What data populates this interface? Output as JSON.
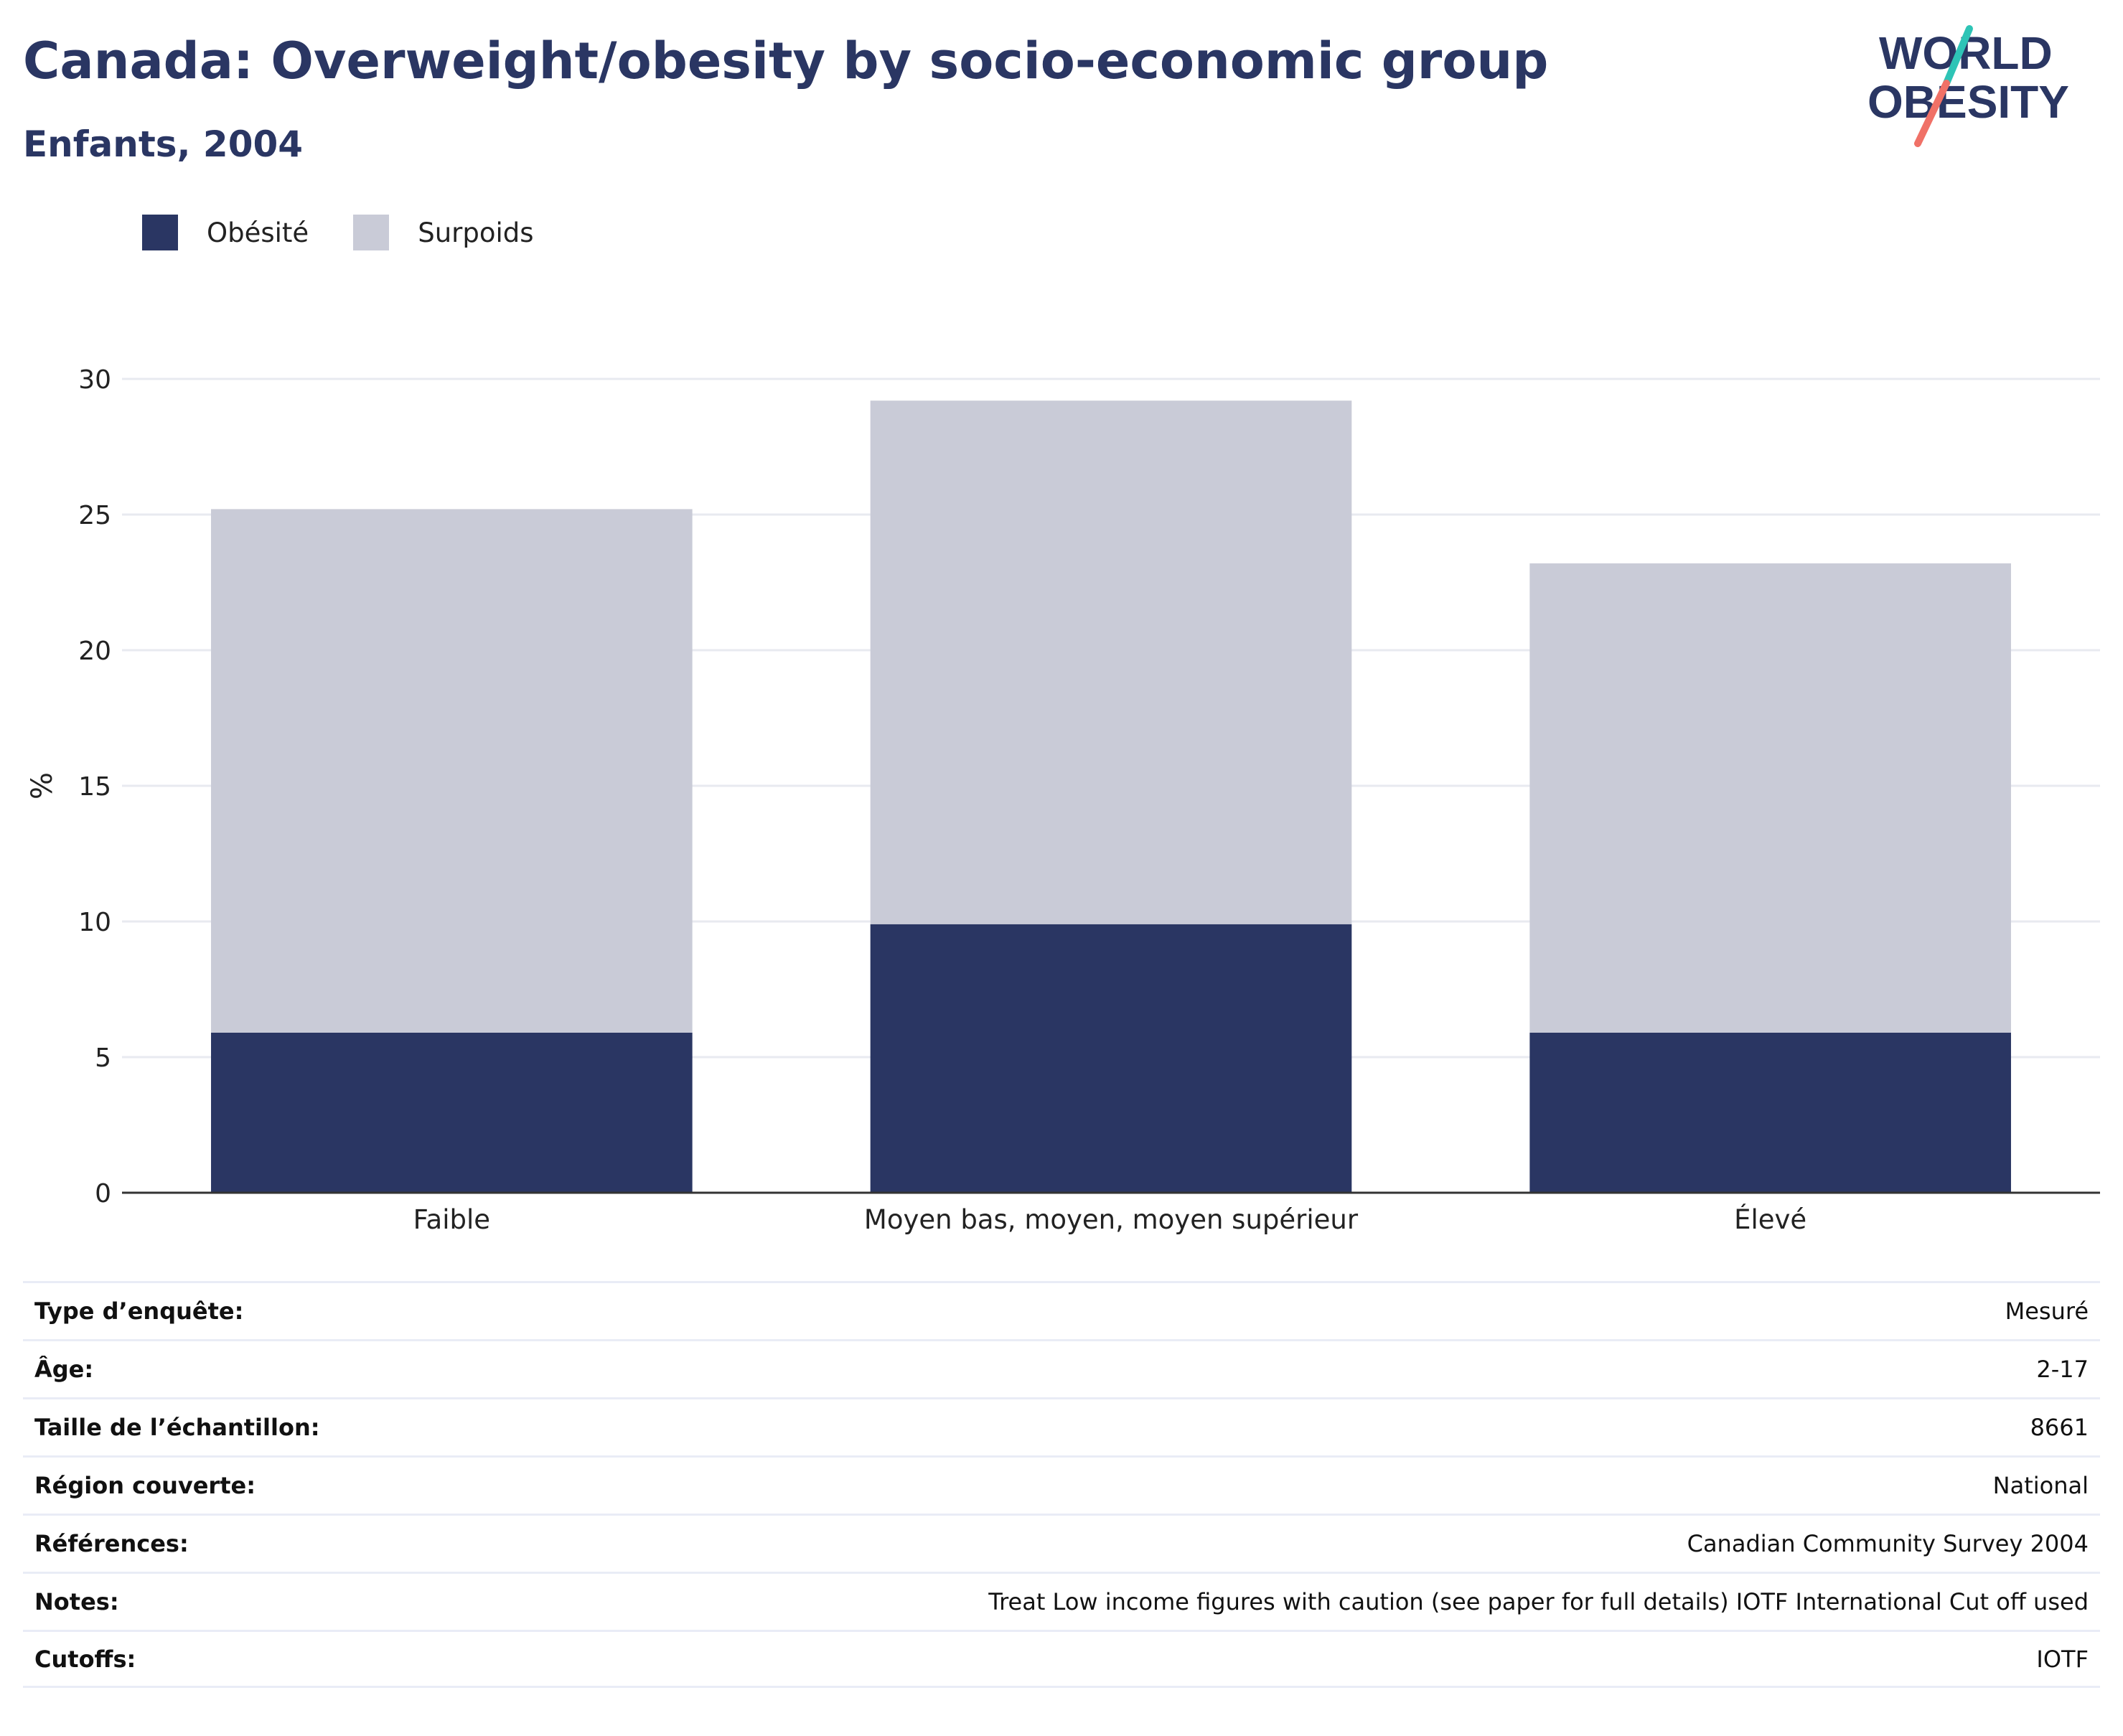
{
  "header": {
    "title": "Canada: Overweight/obesity by socio-economic group",
    "subtitle": "Enfants, 2004"
  },
  "logo": {
    "line1": "WORLD",
    "line2": "OBESITY",
    "slash_colors": [
      "#2ec4b6",
      "#f07167"
    ]
  },
  "legend": {
    "items": [
      {
        "label": "Obésité",
        "color": "#2a3663"
      },
      {
        "label": "Surpoids",
        "color": "#c9cbd7"
      }
    ]
  },
  "chart_data": {
    "type": "bar",
    "stacked": true,
    "categories": [
      "Faible",
      "Moyen bas, moyen, moyen supérieur",
      "Élevé"
    ],
    "series": [
      {
        "name": "Obésité",
        "values": [
          5.9,
          9.9,
          5.9
        ],
        "color": "#2a3663"
      },
      {
        "name": "Surpoids",
        "values": [
          19.3,
          19.3,
          17.3
        ],
        "color": "#c9cbd7"
      }
    ],
    "ylabel": "%",
    "ylim": [
      0,
      30
    ],
    "yticks": [
      0,
      5,
      10,
      15,
      20,
      25,
      30
    ],
    "grid": true,
    "legend_position": "top-left"
  },
  "meta": {
    "rows": [
      {
        "label": "Type d’enquête:",
        "value": "Mesuré"
      },
      {
        "label": "Âge:",
        "value": "2-17"
      },
      {
        "label": "Taille de l’échantillon:",
        "value": "8661"
      },
      {
        "label": "Région couverte:",
        "value": "National"
      },
      {
        "label": "Références:",
        "value": "Canadian Community Survey 2004"
      },
      {
        "label": "Notes:",
        "value": "Treat Low income figures with caution (see paper for full details) IOTF International Cut off used"
      },
      {
        "label": "Cutoffs:",
        "value": "IOTF"
      }
    ]
  }
}
